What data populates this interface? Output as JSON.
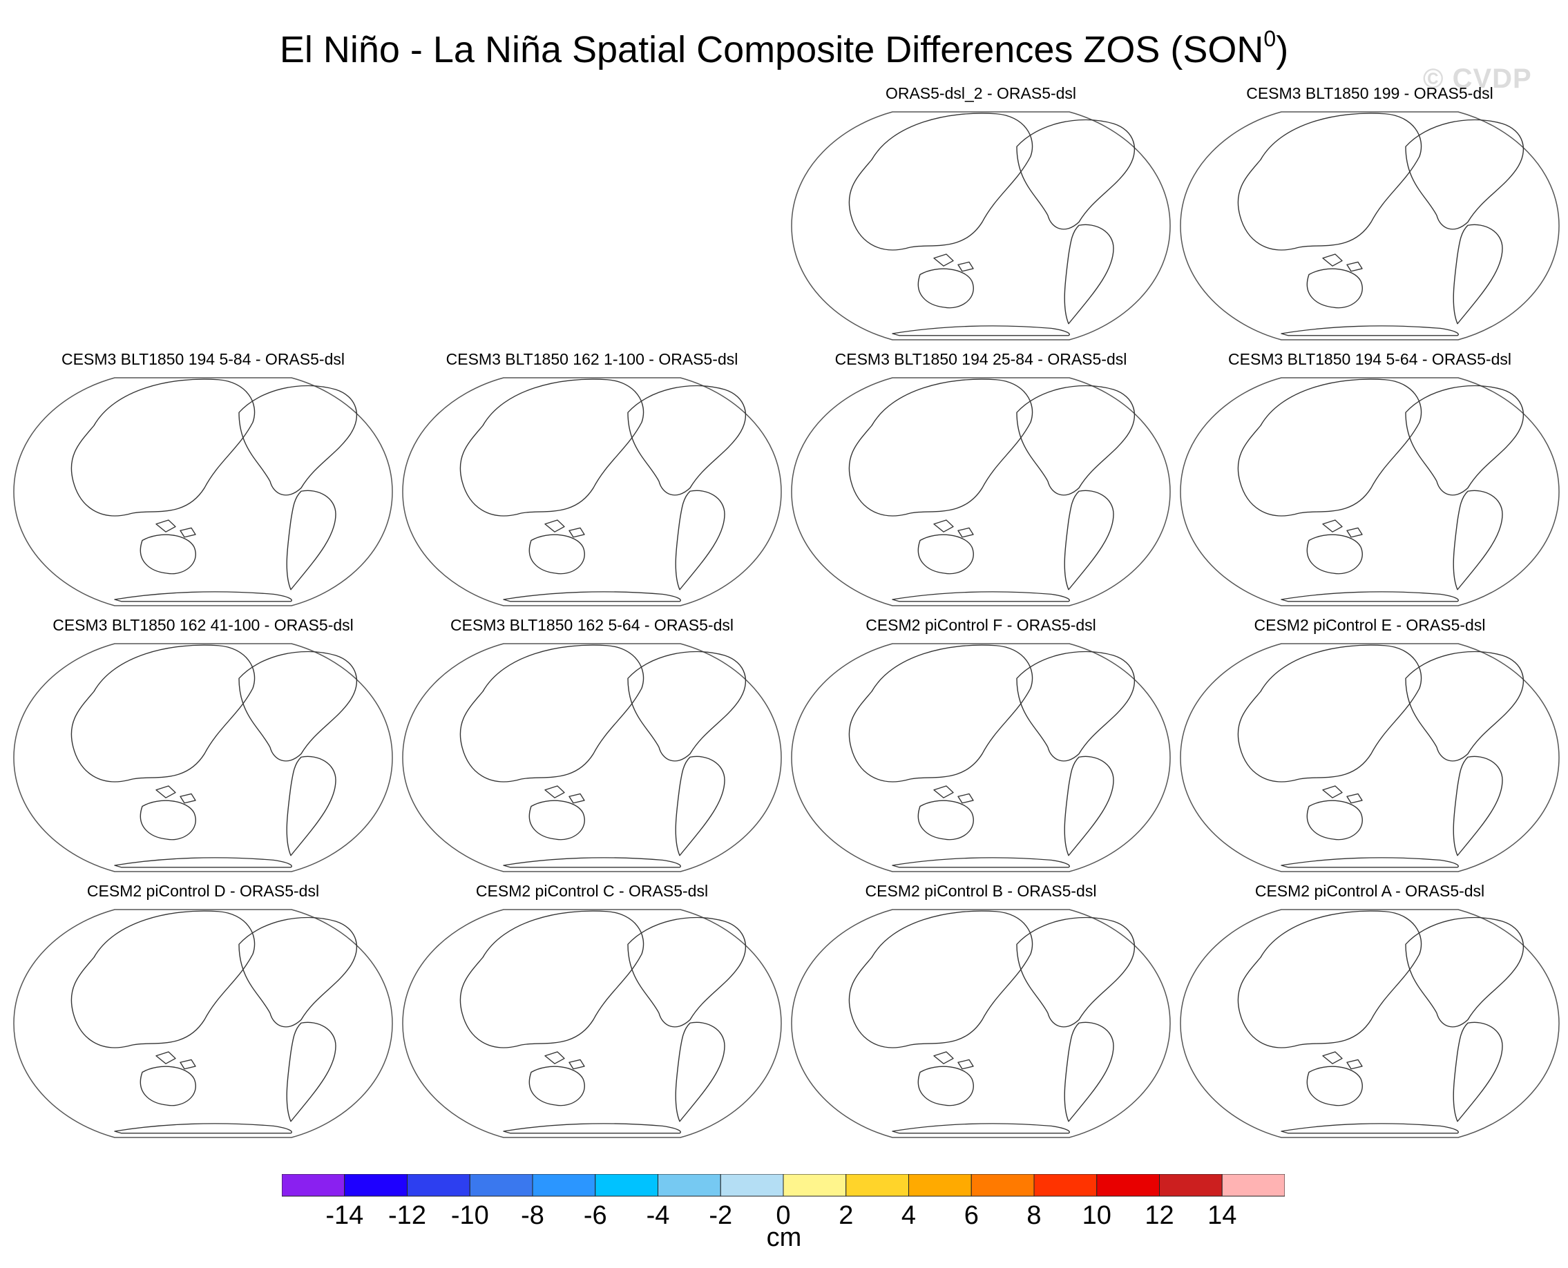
{
  "title_main": "El Niño - La Niña Spatial Composite Differences ZOS (SON",
  "title_sup": "0",
  "title_end": ")",
  "watermark": "© CVDP",
  "panels": [
    {
      "title": "ORAS5-dsl_2 - ORAS5-dsl",
      "row": 0,
      "col": 2
    },
    {
      "title": "CESM3 BLT1850 199 - ORAS5-dsl",
      "row": 0,
      "col": 3
    },
    {
      "title": "CESM3 BLT1850 194 5-84 - ORAS5-dsl",
      "row": 1,
      "col": 0
    },
    {
      "title": "CESM3 BLT1850 162 1-100 - ORAS5-dsl",
      "row": 1,
      "col": 1
    },
    {
      "title": "CESM3 BLT1850 194 25-84 - ORAS5-dsl",
      "row": 1,
      "col": 2
    },
    {
      "title": "CESM3 BLT1850 194 5-64 - ORAS5-dsl",
      "row": 1,
      "col": 3
    },
    {
      "title": "CESM3 BLT1850 162 41-100 - ORAS5-dsl",
      "row": 2,
      "col": 0
    },
    {
      "title": "CESM3 BLT1850 162 5-64 - ORAS5-dsl",
      "row": 2,
      "col": 1
    },
    {
      "title": "CESM2 piControl F - ORAS5-dsl",
      "row": 2,
      "col": 2
    },
    {
      "title": "CESM2 piControl E - ORAS5-dsl",
      "row": 2,
      "col": 3
    },
    {
      "title": "CESM2 piControl D - ORAS5-dsl",
      "row": 3,
      "col": 0
    },
    {
      "title": "CESM2 piControl C - ORAS5-dsl",
      "row": 3,
      "col": 1
    },
    {
      "title": "CESM2 piControl B - ORAS5-dsl",
      "row": 3,
      "col": 2
    },
    {
      "title": "CESM2 piControl A - ORAS5-dsl",
      "row": 3,
      "col": 3
    }
  ],
  "colorbar": {
    "colors": [
      "#8a20f0",
      "#1e00ff",
      "#2d3ff0",
      "#3a78ee",
      "#2b96ff",
      "#00c2ff",
      "#76c9f2",
      "#b4def4",
      "#fff58c",
      "#ffd42a",
      "#ffaa00",
      "#ff7a00",
      "#ff3300",
      "#e80000",
      "#cc1f1f",
      "#ffb3b3"
    ],
    "labels": [
      "-14",
      "-12",
      "-10",
      "-8",
      "-6",
      "-4",
      "-2",
      "0",
      "2",
      "4",
      "6",
      "8",
      "10",
      "12",
      "14"
    ],
    "units": "cm"
  }
}
